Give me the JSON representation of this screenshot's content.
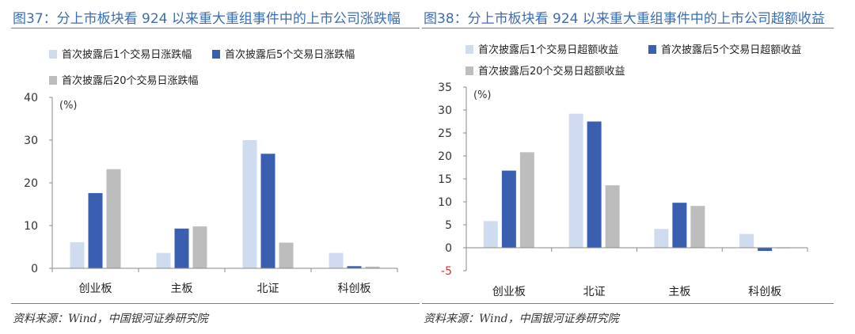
{
  "colors": {
    "series1": "#cfdcf0",
    "series2": "#3a5fb0",
    "series3": "#bdbdbd",
    "title": "#3a6db5",
    "negative_tick": "#c0392b"
  },
  "left": {
    "title": "图37：分上市板块看 924 以来重大重组事件中的上市公司涨跌幅",
    "source": "资料来源：Wind，中国银河证券研究院"
  },
  "right": {
    "title": "图38：分上市板块看 924 以来重大重组事件中的上市公司超额收益",
    "source": "资料来源：Wind，中国银河证券研究院"
  },
  "chart_data": [
    {
      "type": "bar",
      "title": "图37：分上市板块看 924 以来重大重组事件中的上市公司涨跌幅",
      "unit": "(%)",
      "categories": [
        "创业板",
        "主板",
        "北证",
        "科创板"
      ],
      "series": [
        {
          "name": "首次披露后1个交易日涨跌幅",
          "values": [
            6.1,
            3.6,
            30.0,
            3.6
          ]
        },
        {
          "name": "首次披露后5个交易日涨跌幅",
          "values": [
            17.6,
            9.3,
            26.8,
            0.5
          ]
        },
        {
          "name": "首次披露后20个交易日涨跌幅",
          "values": [
            23.2,
            9.8,
            6.0,
            0.4
          ]
        }
      ],
      "ylim": [
        0,
        40
      ],
      "yticks": [
        0,
        10,
        20,
        30,
        40
      ],
      "legend": "top"
    },
    {
      "type": "bar",
      "title": "图38：分上市板块看 924 以来重大重组事件中的上市公司超额收益",
      "unit": "(%)",
      "categories": [
        "创业板",
        "北证",
        "主板",
        "科创板"
      ],
      "series": [
        {
          "name": "首次披露后1个交易日超额收益",
          "values": [
            5.8,
            29.2,
            4.1,
            3.0
          ]
        },
        {
          "name": "首次披露后5个交易日超额收益",
          "values": [
            16.8,
            27.5,
            9.8,
            -0.7
          ]
        },
        {
          "name": "首次披露后20个交易日超额收益",
          "values": [
            20.8,
            13.6,
            9.1,
            0.0
          ]
        }
      ],
      "ylim": [
        -5,
        35
      ],
      "yticks": [
        -5,
        0,
        5,
        10,
        15,
        20,
        25,
        30,
        35
      ],
      "legend": "top"
    }
  ]
}
